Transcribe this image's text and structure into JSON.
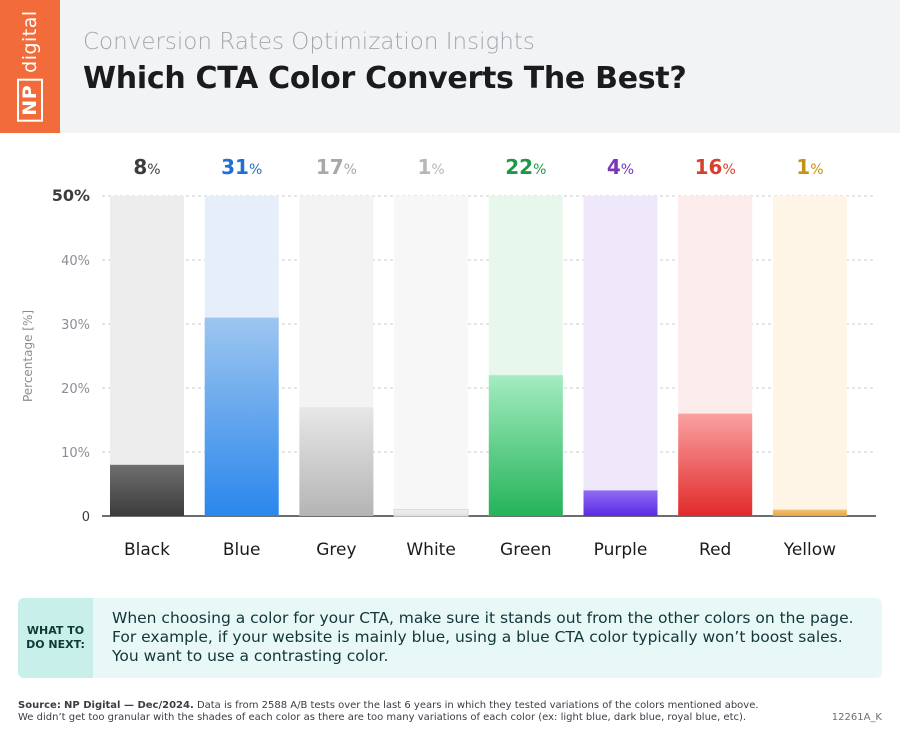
{
  "header": {
    "logo_text": "NP digital",
    "logo_np": "NP",
    "logo_word": "digital",
    "subtitle": "Conversion Rates Optimization Insights",
    "title": "Which CTA Color Converts The Best?"
  },
  "chart_data": {
    "type": "bar",
    "title": "Which CTA Color Converts The Best?",
    "xlabel": "",
    "ylabel": "Percentage [%]",
    "ylim": [
      0,
      50
    ],
    "yticks": [
      0,
      10,
      20,
      30,
      40,
      50
    ],
    "ytick_labels": [
      "0",
      "10%",
      "20%",
      "30%",
      "40%",
      "50%"
    ],
    "grid": true,
    "value_suffix": "%",
    "categories": [
      "Black",
      "Blue",
      "Grey",
      "White",
      "Green",
      "Purple",
      "Red",
      "Yellow"
    ],
    "values": [
      8,
      31,
      17,
      1,
      22,
      4,
      16,
      1
    ],
    "colors": {
      "label": [
        "#3d3d3d",
        "#1f6fd6",
        "#a8a8a8",
        "#b8b8b8",
        "#1b9a48",
        "#7a36b8",
        "#d8402e",
        "#c59213"
      ],
      "track": [
        "#ededed",
        "#e5eef9",
        "#f3f3f3",
        "#f7f7f7",
        "#e7f7ec",
        "#efe8fb",
        "#fdecec",
        "#fff5e6"
      ],
      "bar_top": [
        "#6f6f6f",
        "#9dc6f0",
        "#e7e7e7",
        "#f1f1f1",
        "#a4ecc0",
        "#8f6cf2",
        "#fba1a1",
        "#f4c27c"
      ],
      "bar_bot": [
        "#3c3c3c",
        "#2a87ec",
        "#b4b4b4",
        "#e1e1e1",
        "#24b35a",
        "#5b2ae6",
        "#e12a2a",
        "#e8a63c"
      ]
    }
  },
  "advice": {
    "label": "WHAT TO DO NEXT:",
    "text": "When choosing a color for your CTA, make sure it stands out from the other colors on the page. For example, if your website is mainly blue, using a blue CTA color typically won’t boost sales. You want to use a contrasting color."
  },
  "footer": {
    "source_label": "Source:",
    "source_org": "NP Digital — Dec/2024.",
    "line1": "Data is from 2588 A/B tests over the last 6 years in which they tested variations of the colors mentioned above.",
    "line2": "We didn’t get too granular with the shades of each color as there are too many variations of each color (ex: light blue, dark blue, royal blue, etc).",
    "code": "12261A_K"
  }
}
